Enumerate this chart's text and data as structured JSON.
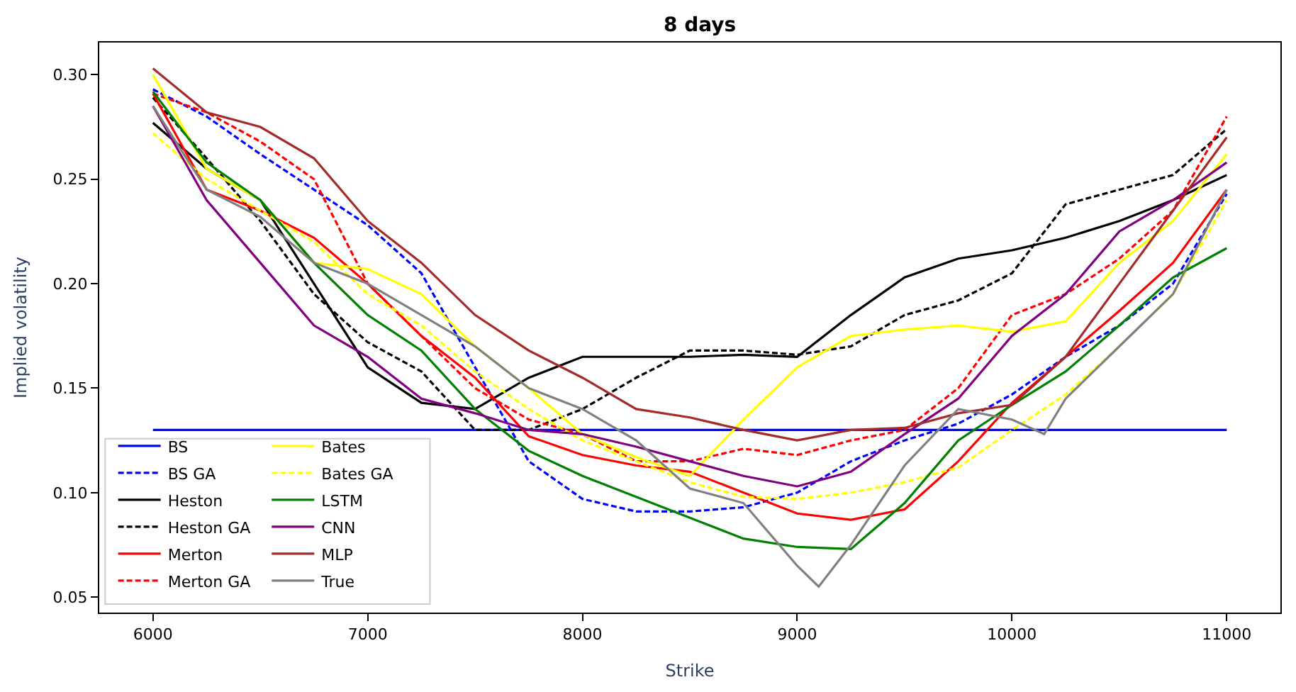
{
  "chart_data": {
    "type": "line",
    "title": "8 days",
    "xlabel": "Strike",
    "ylabel": "Implied volatility",
    "x": [
      6000,
      6250,
      6500,
      6750,
      7000,
      7250,
      7500,
      7750,
      8000,
      8250,
      8500,
      8750,
      9000,
      9250,
      9500,
      9750,
      10000,
      10250,
      10500,
      10750,
      11000
    ],
    "series": [
      {
        "name": "BS",
        "color": "#0000ff",
        "line_style": "solid",
        "values": [
          0.13,
          0.13,
          0.13,
          0.13,
          0.13,
          0.13,
          0.13,
          0.13,
          0.13,
          0.13,
          0.13,
          0.13,
          0.13,
          0.13,
          0.13,
          0.13,
          0.13,
          0.13,
          0.13,
          0.13,
          0.13
        ]
      },
      {
        "name": "BS GA",
        "color": "#0000ff",
        "line_style": "dashed",
        "values": [
          0.293,
          0.28,
          0.262,
          0.245,
          0.228,
          0.205,
          0.16,
          0.115,
          0.097,
          0.091,
          0.091,
          0.093,
          0.1,
          0.115,
          0.125,
          0.133,
          0.147,
          0.165,
          0.18,
          0.2,
          0.243
        ]
      },
      {
        "name": "Heston",
        "color": "#000000",
        "line_style": "solid",
        "values": [
          0.277,
          0.255,
          0.24,
          0.2,
          0.16,
          0.143,
          0.14,
          0.155,
          0.165,
          0.165,
          0.165,
          0.166,
          0.165,
          0.185,
          0.203,
          0.212,
          0.216,
          0.222,
          0.23,
          0.24,
          0.252
        ]
      },
      {
        "name": "Heston GA",
        "color": "#000000",
        "line_style": "dashed",
        "values": [
          0.289,
          0.26,
          0.23,
          0.195,
          0.172,
          0.158,
          0.13,
          0.13,
          0.14,
          0.155,
          0.168,
          0.168,
          0.166,
          0.17,
          0.185,
          0.192,
          0.205,
          0.238,
          0.245,
          0.252,
          0.274
        ]
      },
      {
        "name": "Merton",
        "color": "#ff0000",
        "line_style": "solid",
        "values": [
          0.291,
          0.245,
          0.235,
          0.222,
          0.2,
          0.175,
          0.155,
          0.127,
          0.118,
          0.113,
          0.11,
          0.1,
          0.09,
          0.087,
          0.092,
          0.115,
          0.143,
          0.165,
          0.187,
          0.21,
          0.245
        ]
      },
      {
        "name": "Merton GA",
        "color": "#ff0000",
        "line_style": "dashed",
        "values": [
          0.291,
          0.282,
          0.268,
          0.25,
          0.2,
          0.175,
          0.15,
          0.135,
          0.128,
          0.115,
          0.115,
          0.121,
          0.118,
          0.125,
          0.13,
          0.15,
          0.185,
          0.195,
          0.212,
          0.235,
          0.28
        ]
      },
      {
        "name": "Bates",
        "color": "#ffff00",
        "line_style": "solid",
        "values": [
          0.3,
          0.255,
          0.24,
          0.21,
          0.207,
          0.195,
          0.17,
          0.15,
          0.128,
          0.117,
          0.108,
          0.135,
          0.16,
          0.175,
          0.178,
          0.18,
          0.177,
          0.182,
          0.21,
          0.23,
          0.262
        ]
      },
      {
        "name": "Bates GA",
        "color": "#ffff00",
        "line_style": "dashed",
        "values": [
          0.272,
          0.25,
          0.235,
          0.22,
          0.195,
          0.18,
          0.158,
          0.14,
          0.125,
          0.115,
          0.105,
          0.098,
          0.097,
          0.1,
          0.105,
          0.112,
          0.13,
          0.147,
          0.17,
          0.195,
          0.24
        ]
      },
      {
        "name": "LSTM",
        "color": "#008000",
        "line_style": "solid",
        "values": [
          0.292,
          0.258,
          0.24,
          0.21,
          0.185,
          0.168,
          0.14,
          0.12,
          0.108,
          0.098,
          0.088,
          0.078,
          0.074,
          0.073,
          0.095,
          0.125,
          0.142,
          0.158,
          0.18,
          0.203,
          0.217
        ]
      },
      {
        "name": "CNN",
        "color": "#800080",
        "line_style": "solid",
        "values": [
          0.285,
          0.24,
          0.21,
          0.18,
          0.165,
          0.145,
          0.138,
          0.13,
          0.128,
          0.122,
          0.115,
          0.108,
          0.103,
          0.11,
          0.128,
          0.145,
          0.175,
          0.195,
          0.225,
          0.24,
          0.258
        ]
      },
      {
        "name": "MLP",
        "color": "#a52a2a",
        "line_style": "solid",
        "values": [
          0.303,
          0.282,
          0.275,
          0.26,
          0.23,
          0.21,
          0.185,
          0.168,
          0.155,
          0.14,
          0.136,
          0.13,
          0.125,
          0.13,
          0.131,
          0.138,
          0.142,
          0.165,
          0.2,
          0.235,
          0.27
        ]
      },
      {
        "name": "True",
        "color": "#808080",
        "line_style": "solid",
        "x": [
          6000,
          6250,
          6500,
          6750,
          7000,
          7250,
          7500,
          7750,
          8000,
          8250,
          8500,
          8750,
          9000,
          9100,
          9250,
          9500,
          9750,
          10000,
          10150,
          10250,
          10500,
          10750,
          11000
        ],
        "values": [
          0.285,
          0.245,
          0.232,
          0.21,
          0.2,
          0.185,
          0.17,
          0.15,
          0.14,
          0.125,
          0.102,
          0.095,
          0.065,
          0.055,
          0.075,
          0.113,
          0.14,
          0.135,
          0.128,
          0.145,
          0.17,
          0.195,
          0.245
        ]
      }
    ],
    "xlim": [
      5750,
      11250
    ],
    "xticks": [
      6000,
      7000,
      8000,
      9000,
      10000,
      11000
    ],
    "ylim": [
      0.0426,
      0.3154
    ],
    "yticks": [
      {
        "value": 0.05,
        "label": "0.05"
      },
      {
        "value": 0.1,
        "label": "0.10"
      },
      {
        "value": 0.15,
        "label": "0.15"
      },
      {
        "value": 0.2,
        "label": "0.20"
      },
      {
        "value": 0.25,
        "label": "0.25"
      },
      {
        "value": 0.3,
        "label": "0.30"
      }
    ],
    "grid": false,
    "legend": "bottom left",
    "marker": "none"
  }
}
